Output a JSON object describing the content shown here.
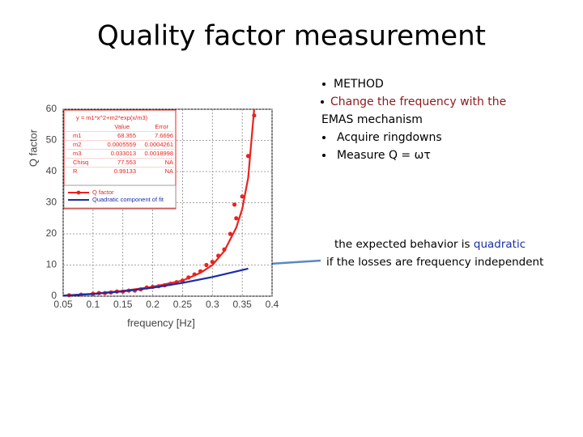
{
  "title": "Quality factor measurement",
  "bullets": [
    "METHOD",
    "Change the frequency with  the",
    "EMAS mechanism",
    "Acquire ringdowns",
    "Measure Q = ωτ"
  ],
  "note": {
    "line1_a": "the expected behavior is ",
    "line1_b": "quadratic",
    "line2": "if the losses are frequency independent"
  },
  "chart_data": {
    "type": "scatter",
    "xlabel": "frequency [Hz]",
    "ylabel": "Q factor",
    "xlim": [
      0.05,
      0.4
    ],
    "xticks": [
      0.05,
      0.1,
      0.15,
      0.2,
      0.25,
      0.3,
      0.35,
      0.4
    ],
    "ylim": [
      0,
      60
    ],
    "yticks": [
      0,
      10,
      20,
      30,
      40,
      50,
      60
    ],
    "grid": true,
    "series": [
      {
        "name": "Q factor",
        "color": "#e8231f",
        "type": "scatter",
        "x": [
          0.06,
          0.08,
          0.1,
          0.11,
          0.12,
          0.13,
          0.14,
          0.15,
          0.16,
          0.17,
          0.18,
          0.19,
          0.2,
          0.21,
          0.22,
          0.23,
          0.24,
          0.25,
          0.26,
          0.27,
          0.28,
          0.29,
          0.3,
          0.31,
          0.32,
          0.33,
          0.337,
          0.34,
          0.35,
          0.36,
          0.37
        ],
        "values": [
          0.3,
          0.5,
          0.8,
          1,
          1,
          1.2,
          1.5,
          1.5,
          1.8,
          1.8,
          2.2,
          2.8,
          3,
          3.2,
          3.5,
          4,
          4.5,
          5,
          6,
          7,
          8,
          10,
          11,
          13,
          15,
          20,
          29.4,
          25,
          32,
          45,
          58
        ]
      },
      {
        "color": "#e8231f",
        "type": "line",
        "x": [
          0.05,
          0.1,
          0.15,
          0.2,
          0.25,
          0.28,
          0.3,
          0.32,
          0.34,
          0.35,
          0.36,
          0.37
        ],
        "values": [
          0.2,
          0.8,
          1.7,
          3,
          5,
          7.5,
          10,
          14.5,
          22,
          28,
          38,
          60
        ]
      },
      {
        "name": "Quadratic component of fit",
        "color": "#1a2ea6",
        "type": "line",
        "x": [
          0.05,
          0.1,
          0.15,
          0.2,
          0.25,
          0.3,
          0.36
        ],
        "values": [
          0.17,
          0.68,
          1.54,
          2.73,
          4.27,
          6.15,
          8.86
        ]
      }
    ],
    "fit_table": {
      "equation": "y = m1*x^2+m2*exp(x/m3)",
      "header": [
        "Value",
        "Error"
      ],
      "rows": [
        [
          "m1",
          "68.355",
          "7.6696"
        ],
        [
          "m2",
          "0.0005559",
          "0.0004261"
        ],
        [
          "m3",
          "0.033013",
          "0.0018998"
        ],
        [
          "Chisq",
          "77.553",
          "NA"
        ],
        [
          "R",
          "0.99133",
          "NA"
        ]
      ]
    }
  }
}
